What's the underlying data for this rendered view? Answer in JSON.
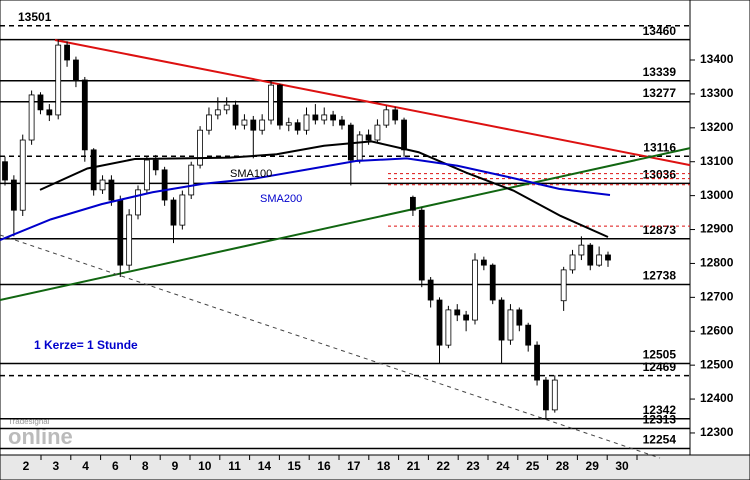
{
  "chart_data": {
    "type": "candlestick",
    "ylim": [
      12235,
      13577
    ],
    "yticks": [
      12300,
      12400,
      12500,
      12600,
      12700,
      12800,
      12900,
      13000,
      13100,
      13200,
      13300,
      13400
    ],
    "x_labels": [
      "2",
      "3",
      "4",
      "6",
      "8",
      "9",
      "10",
      "11",
      "14",
      "15",
      "16",
      "17",
      "18",
      "21",
      "22",
      "23",
      "24",
      "25",
      "28",
      "29",
      "30"
    ],
    "up_color": "#ffffff",
    "down_color": "#000000",
    "candles": [
      [
        13100,
        13115,
        13030,
        13046
      ],
      [
        13046,
        13060,
        12880,
        12957
      ],
      [
        12957,
        13180,
        12940,
        13164
      ],
      [
        13164,
        13310,
        13150,
        13297
      ],
      [
        13297,
        13305,
        13240,
        13253
      ],
      [
        13253,
        13270,
        13220,
        13238
      ],
      [
        13238,
        13460,
        13225,
        13444
      ],
      [
        13444,
        13455,
        13380,
        13400
      ],
      [
        13400,
        13410,
        13320,
        13341
      ],
      [
        13341,
        13350,
        13100,
        13135
      ],
      [
        13135,
        13140,
        13000,
        13017
      ],
      [
        13017,
        13060,
        13005,
        13046
      ],
      [
        13046,
        13060,
        12970,
        12987
      ],
      [
        12987,
        13000,
        12760,
        12795
      ],
      [
        12795,
        12960,
        12780,
        12943
      ],
      [
        12943,
        13030,
        12930,
        13017
      ],
      [
        13017,
        13115,
        13005,
        13105
      ],
      [
        13105,
        13120,
        13060,
        13076
      ],
      [
        13076,
        13085,
        12970,
        12987
      ],
      [
        12987,
        12995,
        12860,
        12913
      ],
      [
        12913,
        13015,
        12900,
        13002
      ],
      [
        13002,
        13100,
        12990,
        13090
      ],
      [
        13090,
        13205,
        13080,
        13193
      ],
      [
        13193,
        13260,
        13180,
        13238
      ],
      [
        13238,
        13290,
        13225,
        13253
      ],
      [
        13253,
        13290,
        13240,
        13267
      ],
      [
        13267,
        13280,
        13195,
        13208
      ],
      [
        13208,
        13240,
        13195,
        13223
      ],
      [
        13223,
        13235,
        13110,
        13193
      ],
      [
        13193,
        13240,
        13180,
        13223
      ],
      [
        13223,
        13340,
        13210,
        13326
      ],
      [
        13326,
        13330,
        13195,
        13208
      ],
      [
        13208,
        13230,
        13190,
        13215
      ],
      [
        13215,
        13225,
        13180,
        13193
      ],
      [
        13193,
        13260,
        13180,
        13238
      ],
      [
        13238,
        13270,
        13210,
        13223
      ],
      [
        13223,
        13260,
        13210,
        13238
      ],
      [
        13238,
        13250,
        13205,
        13223
      ],
      [
        13223,
        13235,
        13195,
        13208
      ],
      [
        13208,
        13215,
        13030,
        13105
      ],
      [
        13105,
        13190,
        13095,
        13179
      ],
      [
        13179,
        13195,
        13150,
        13164
      ],
      [
        13164,
        13225,
        13155,
        13208
      ],
      [
        13208,
        13265,
        13200,
        13253
      ],
      [
        13253,
        13262,
        13210,
        13223
      ],
      [
        13223,
        13230,
        13115,
        13135
      ],
      [
        12995,
        13000,
        12940,
        12957
      ],
      [
        12957,
        12965,
        12730,
        12751
      ],
      [
        12751,
        12760,
        12670,
        12692
      ],
      [
        12692,
        12700,
        12505,
        12559
      ],
      [
        12559,
        12675,
        12550,
        12663
      ],
      [
        12663,
        12680,
        12630,
        12648
      ],
      [
        12648,
        12660,
        12600,
        12633
      ],
      [
        12633,
        12830,
        12620,
        12810
      ],
      [
        12810,
        12820,
        12780,
        12795
      ],
      [
        12795,
        12800,
        12680,
        12692
      ],
      [
        12692,
        12700,
        12505,
        12574
      ],
      [
        12574,
        12680,
        12560,
        12663
      ],
      [
        12663,
        12670,
        12600,
        12618
      ],
      [
        12618,
        12625,
        12540,
        12559
      ],
      [
        12559,
        12570,
        12440,
        12456
      ],
      [
        12456,
        12465,
        12342,
        12368
      ],
      [
        12368,
        12470,
        12360,
        12456
      ],
      [
        12690,
        12790,
        12660,
        12781
      ],
      [
        12781,
        12840,
        12770,
        12825
      ],
      [
        12825,
        12880,
        12810,
        12854
      ],
      [
        12854,
        12860,
        12780,
        12795
      ],
      [
        12795,
        12850,
        12790,
        12825
      ],
      [
        12825,
        12835,
        12790,
        12810
      ]
    ],
    "moving_averages": [
      {
        "name": "SMA100",
        "color": "#000000",
        "values": [
          13017,
          13080,
          13108,
          13110,
          13112,
          13122,
          13147,
          13160,
          13128,
          13068,
          13015,
          12940,
          12878
        ]
      },
      {
        "name": "SMA200",
        "color": "#0000cc",
        "values": [
          12869,
          12930,
          12975,
          13010,
          13035,
          13050,
          13076,
          13102,
          13110,
          13088,
          13055,
          13020,
          13002
        ]
      }
    ],
    "trendlines": [
      {
        "color": "#dd1111",
        "values": [
          13459,
          13090
        ]
      },
      {
        "color": "#116611",
        "values": [
          12692,
          13140
        ]
      },
      {
        "color": "#444444",
        "dashed": true,
        "values": [
          12884,
          12226
        ]
      }
    ],
    "levels": [
      {
        "value": 13501,
        "dashed": true,
        "label_position": "left"
      },
      {
        "value": 13460,
        "dashed": false
      },
      {
        "value": 13339,
        "dashed": false
      },
      {
        "value": 13277,
        "dashed": false
      },
      {
        "value": 13116,
        "dashed": true
      },
      {
        "value": 13036,
        "dashed": false
      },
      {
        "value": 12873,
        "dashed": false
      },
      {
        "value": 12738,
        "dashed": false
      },
      {
        "value": 12505,
        "dashed": false
      },
      {
        "value": 12469,
        "dashed": true
      },
      {
        "value": 12342,
        "dashed": false
      },
      {
        "value": 12313,
        "dashed": false
      },
      {
        "value": 12254,
        "dashed": false
      }
    ],
    "red_levels": [
      13065,
      13050,
      13032,
      12910
    ],
    "annotation": "1 Kerze= 1 Stunde",
    "logo_small": "Tradesignal",
    "logo_big": "online"
  }
}
